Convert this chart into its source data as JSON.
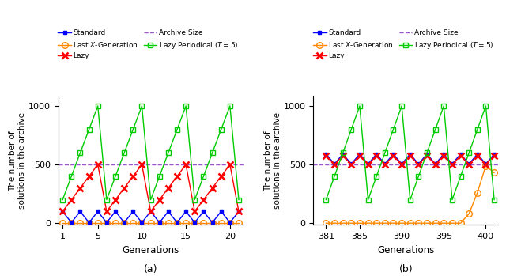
{
  "archive_size": 500,
  "subplot_a": {
    "xlim": [
      0.5,
      21.5
    ],
    "ylim": [
      -15,
      1080
    ],
    "xticks": [
      1,
      5,
      10,
      15,
      20
    ],
    "yticks": [
      0,
      500,
      1000
    ],
    "xlabel": "Generations",
    "ylabel": "The number of\nsolutions in the archive",
    "label": "(a)"
  },
  "subplot_b": {
    "xlim": [
      379.5,
      401.5
    ],
    "ylim": [
      -15,
      1080
    ],
    "xticks": [
      381,
      385,
      390,
      395,
      400
    ],
    "yticks": [
      0,
      500,
      1000
    ],
    "xlabel": "Generations",
    "ylabel": "The number of\nsolutions in the archive",
    "label": "(b)"
  },
  "colors": {
    "standard": "#0000ff",
    "lazy": "#ff0000",
    "lazy_periodical": "#00cc00",
    "last_x": "#ff8800",
    "archive_size": "#9955cc"
  },
  "legend": {
    "standard": "Standard",
    "lazy": "Lazy",
    "lazy_periodical": "Lazy Periodical ($T = 5$)",
    "last_x": "Last $X$-Generation",
    "archive_size": "Archive Size"
  }
}
